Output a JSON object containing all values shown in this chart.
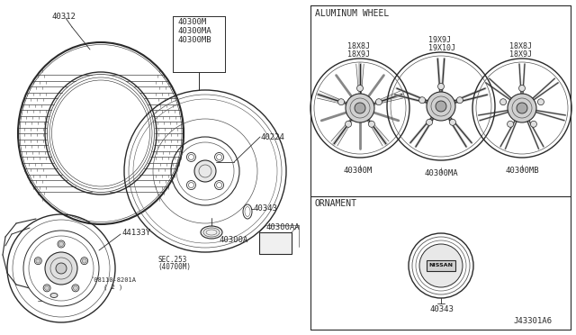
{
  "bg_color": "#ffffff",
  "line_color": "#2a2a2a",
  "light_line": "#555555",
  "diagram_id": "J43301A6",
  "labels": {
    "tire": "40312",
    "wheel_group": [
      "40300M",
      "40300MA",
      "40300MB"
    ],
    "hub_cap": "40224",
    "lug_nut": "40300A",
    "ornament_small": "40343",
    "wheel_cap": "40300AA",
    "brake_ref": "44133Y",
    "sec": "SEC.253",
    "sec2": "(40700M)",
    "ref": "´08110-8201A",
    "ref2": "( 2 )",
    "alum_wheel": "ALUMINUM WHEEL",
    "ornament": "ORNAMENT",
    "ornament_part": "40343",
    "wheel_labels": [
      "40300M",
      "40300MA",
      "40300MB"
    ],
    "specs_left": [
      "18X8J",
      "18X9J"
    ],
    "specs_center": [
      "19X9J",
      "19X10J"
    ],
    "specs_right": [
      "18X8J",
      "18X9J"
    ]
  }
}
